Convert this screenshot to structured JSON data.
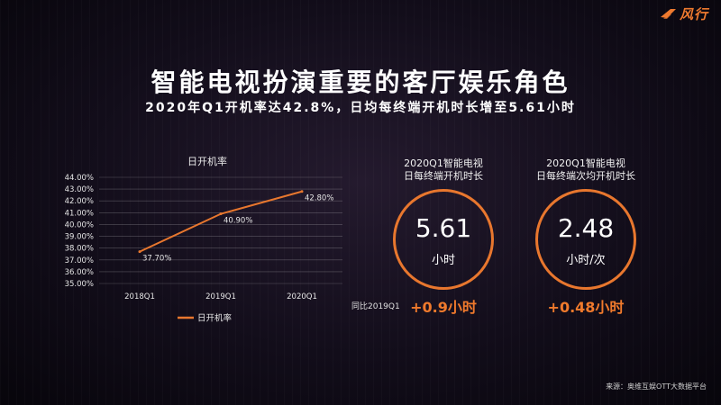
{
  "brand": {
    "logo_text": "风行",
    "accent_color": "#ee7a2f"
  },
  "title": "智能电视扮演重要的客厅娱乐角色",
  "subtitle": "2020年Q1开机率达42.8%，日均每终端开机时长增至5.61小时",
  "chart_data": {
    "type": "line",
    "title": "日开机率",
    "categories": [
      "2018Q1",
      "2019Q1",
      "2020Q1"
    ],
    "series": [
      {
        "name": "日开机率",
        "values": [
          37.7,
          40.9,
          42.8
        ],
        "color": "#e8772e"
      }
    ],
    "data_labels": [
      "37.70%",
      "40.90%",
      "42.80%"
    ],
    "y_ticks": [
      "35.00%",
      "36.00%",
      "37.00%",
      "38.00%",
      "39.00%",
      "40.00%",
      "41.00%",
      "42.00%",
      "43.00%",
      "44.00%"
    ],
    "ylim": [
      35,
      44
    ],
    "grid": true,
    "legend_position": "bottom"
  },
  "stats": [
    {
      "title_line1": "2020Q1智能电视",
      "title_line2": "日每终端开机时长",
      "value": "5.61",
      "unit": "小时",
      "delta": "+0.9小时"
    },
    {
      "title_line1": "2020Q1智能电视",
      "title_line2": "日每终端次均开机时长",
      "value": "2.48",
      "unit": "小时/次",
      "delta": "+0.48小时"
    }
  ],
  "yoy_label": "同比2019Q1",
  "source": "来源：奥维互娱OTT大数据平台"
}
